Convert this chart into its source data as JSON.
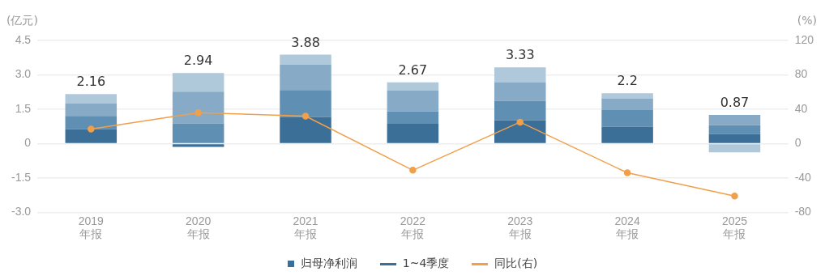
{
  "chart_data": {
    "type": "bar",
    "stacked": true,
    "categories": [
      "2019 年报",
      "2020 年报",
      "2021 年报",
      "2022 年报",
      "2023 年报",
      "2024 年报",
      "2025 年报"
    ],
    "series": [
      {
        "color": "#3b6f98",
        "values": [
          0.63,
          -0.14,
          1.16,
          0.86,
          1.01,
          0.74,
          0.42
        ]
      },
      {
        "color": "#5f8fb2",
        "values": [
          0.58,
          0.88,
          1.18,
          0.54,
          0.86,
          0.72,
          0.38
        ]
      },
      {
        "color": "#87abc6",
        "values": [
          0.55,
          1.39,
          1.11,
          0.91,
          0.81,
          0.5,
          0.45
        ]
      },
      {
        "color": "#b0c9da",
        "values": [
          0.4,
          0.81,
          0.43,
          0.36,
          0.65,
          0.24,
          -0.38
        ]
      },
      {
        "type": "line",
        "name": "同比(右)",
        "axis": "y2",
        "color": "#f0a04b",
        "values": [
          17,
          36,
          32,
          -31,
          25,
          -34,
          -61
        ]
      }
    ],
    "totals": [
      "2.16",
      "2.94",
      "3.88",
      "2.67",
      "3.33",
      "2.2",
      "0.87"
    ],
    "annotations": [
      "归母净利润",
      "1~4季度"
    ],
    "ylabel": "(亿元)",
    "y2label": "(%)",
    "ylim": [
      -3,
      4.5
    ],
    "yticks": [
      {
        "value": -3,
        "label": "-3.0"
      },
      -1.5,
      0,
      1.5,
      {
        "value": 3,
        "label": "3.0"
      },
      4.5
    ],
    "y2lim": [
      -80,
      120
    ],
    "y2ticks": [
      -80,
      -40,
      0,
      40,
      80,
      120
    ],
    "grid": "y",
    "legend": "bottom",
    "marker": "circle",
    "line_style": "solid"
  }
}
